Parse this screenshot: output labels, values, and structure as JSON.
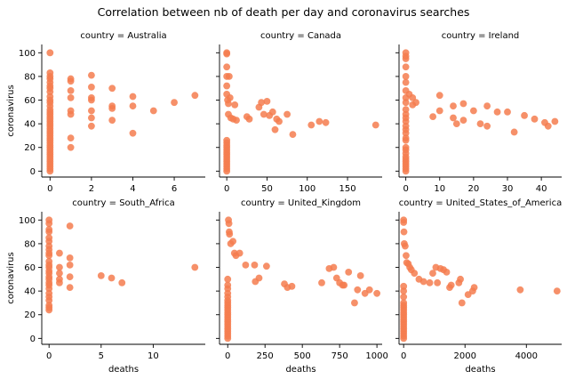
{
  "figure": {
    "title": "Correlation between nb of death per day and coronavirus searches",
    "xlabel": "deaths",
    "ylabel": "coronavirus"
  },
  "colors": {
    "point": "#f47c4f",
    "axis": "#000000"
  },
  "shared_y": {
    "ylim": [
      -5,
      107
    ],
    "yticks": [
      0,
      20,
      40,
      60,
      80,
      100
    ]
  },
  "chart_data": [
    {
      "type": "scatter",
      "title": "country = Australia",
      "xlabel": "",
      "ylabel": "coronavirus",
      "xlim": [
        -0.4,
        7.5
      ],
      "xticks": [
        0,
        2,
        4,
        6
      ],
      "points": [
        [
          0,
          0
        ],
        [
          0,
          2
        ],
        [
          0,
          4
        ],
        [
          0,
          6
        ],
        [
          0,
          8
        ],
        [
          0,
          10
        ],
        [
          0,
          12
        ],
        [
          0,
          14
        ],
        [
          0,
          16
        ],
        [
          0,
          18
        ],
        [
          0,
          20
        ],
        [
          0,
          22
        ],
        [
          0,
          24
        ],
        [
          0,
          26
        ],
        [
          0,
          28
        ],
        [
          0,
          30
        ],
        [
          0,
          32
        ],
        [
          0,
          34
        ],
        [
          0,
          36
        ],
        [
          0,
          38
        ],
        [
          0,
          40
        ],
        [
          0,
          42
        ],
        [
          0,
          44
        ],
        [
          0,
          46
        ],
        [
          0,
          48
        ],
        [
          0,
          50
        ],
        [
          0,
          52
        ],
        [
          0,
          55
        ],
        [
          0,
          58
        ],
        [
          0,
          60
        ],
        [
          0,
          63
        ],
        [
          0,
          67
        ],
        [
          0,
          70
        ],
        [
          0,
          72
        ],
        [
          0,
          75
        ],
        [
          0,
          78
        ],
        [
          0,
          80
        ],
        [
          0,
          83
        ],
        [
          0,
          100
        ],
        [
          1,
          78
        ],
        [
          1,
          76
        ],
        [
          1,
          68
        ],
        [
          1,
          62
        ],
        [
          1,
          51
        ],
        [
          1,
          48
        ],
        [
          1,
          28
        ],
        [
          1,
          20
        ],
        [
          2,
          81
        ],
        [
          2,
          71
        ],
        [
          2,
          62
        ],
        [
          2,
          60
        ],
        [
          2,
          51
        ],
        [
          2,
          45
        ],
        [
          2,
          38
        ],
        [
          3,
          70
        ],
        [
          3,
          55
        ],
        [
          3,
          53
        ],
        [
          3,
          43
        ],
        [
          4,
          63
        ],
        [
          4,
          55
        ],
        [
          4,
          32
        ],
        [
          5,
          51
        ],
        [
          6,
          58
        ],
        [
          7,
          64
        ]
      ]
    },
    {
      "type": "scatter",
      "title": "country = Canada",
      "xlabel": "",
      "ylabel": "",
      "xlim": [
        -9,
        193
      ],
      "xticks": [
        0,
        50,
        100,
        150
      ],
      "points": [
        [
          0,
          0
        ],
        [
          0,
          2
        ],
        [
          0,
          4
        ],
        [
          0,
          6
        ],
        [
          0,
          8
        ],
        [
          0,
          10
        ],
        [
          0,
          12
        ],
        [
          0,
          14
        ],
        [
          0,
          16
        ],
        [
          0,
          18
        ],
        [
          0,
          20
        ],
        [
          0,
          22
        ],
        [
          0,
          24
        ],
        [
          0,
          26
        ],
        [
          0,
          100
        ],
        [
          0,
          99
        ],
        [
          0,
          88
        ],
        [
          0,
          80
        ],
        [
          0,
          72
        ],
        [
          0,
          65
        ],
        [
          1,
          60
        ],
        [
          2,
          57
        ],
        [
          3,
          80
        ],
        [
          4,
          62
        ],
        [
          2,
          48
        ],
        [
          5,
          45
        ],
        [
          8,
          44
        ],
        [
          10,
          56
        ],
        [
          12,
          43
        ],
        [
          25,
          46
        ],
        [
          28,
          44
        ],
        [
          40,
          54
        ],
        [
          43,
          58
        ],
        [
          46,
          48
        ],
        [
          50,
          59
        ],
        [
          53,
          47
        ],
        [
          57,
          50
        ],
        [
          60,
          35
        ],
        [
          62,
          44
        ],
        [
          65,
          42
        ],
        [
          75,
          48
        ],
        [
          82,
          31
        ],
        [
          105,
          39
        ],
        [
          115,
          42
        ],
        [
          123,
          41
        ],
        [
          185,
          39
        ]
      ]
    },
    {
      "type": "scatter",
      "title": "country = Ireland",
      "xlabel": "",
      "ylabel": "",
      "xlim": [
        -2,
        46
      ],
      "xticks": [
        0,
        10,
        20,
        30,
        40
      ],
      "points": [
        [
          0,
          0
        ],
        [
          0,
          2
        ],
        [
          0,
          4
        ],
        [
          0,
          6
        ],
        [
          0,
          8
        ],
        [
          0,
          10
        ],
        [
          0,
          12
        ],
        [
          0,
          15
        ],
        [
          0,
          18
        ],
        [
          0,
          20
        ],
        [
          0,
          100
        ],
        [
          0,
          97
        ],
        [
          0,
          95
        ],
        [
          0,
          88
        ],
        [
          0,
          80
        ],
        [
          0,
          75
        ],
        [
          0,
          68
        ],
        [
          0,
          62
        ],
        [
          0,
          58
        ],
        [
          0,
          52
        ],
        [
          0,
          48
        ],
        [
          0,
          45
        ],
        [
          0,
          42
        ],
        [
          0,
          38
        ],
        [
          0,
          35
        ],
        [
          0,
          32
        ],
        [
          0,
          28
        ],
        [
          0,
          26
        ],
        [
          1,
          65
        ],
        [
          2,
          62
        ],
        [
          2,
          56
        ],
        [
          3,
          58
        ],
        [
          8,
          46
        ],
        [
          10,
          64
        ],
        [
          10,
          51
        ],
        [
          14,
          55
        ],
        [
          14,
          45
        ],
        [
          15,
          40
        ],
        [
          17,
          57
        ],
        [
          17,
          43
        ],
        [
          20,
          51
        ],
        [
          22,
          40
        ],
        [
          24,
          55
        ],
        [
          24,
          38
        ],
        [
          27,
          50
        ],
        [
          30,
          50
        ],
        [
          32,
          33
        ],
        [
          35,
          47
        ],
        [
          38,
          44
        ],
        [
          41,
          41
        ],
        [
          42,
          38
        ],
        [
          44,
          42
        ]
      ]
    },
    {
      "type": "scatter",
      "title": "country = South_Africa",
      "xlabel": "deaths",
      "ylabel": "coronavirus",
      "xlim": [
        -0.7,
        15
      ],
      "xticks": [
        0,
        5,
        10
      ],
      "points": [
        [
          0,
          100
        ],
        [
          0,
          97
        ],
        [
          0,
          92
        ],
        [
          0,
          90
        ],
        [
          0,
          85
        ],
        [
          0,
          82
        ],
        [
          0,
          78
        ],
        [
          0,
          75
        ],
        [
          0,
          72
        ],
        [
          0,
          70
        ],
        [
          0,
          65
        ],
        [
          0,
          62
        ],
        [
          0,
          60
        ],
        [
          0,
          57
        ],
        [
          0,
          55
        ],
        [
          0,
          52
        ],
        [
          0,
          50
        ],
        [
          0,
          47
        ],
        [
          0,
          45
        ],
        [
          0,
          42
        ],
        [
          0,
          38
        ],
        [
          0,
          35
        ],
        [
          0,
          32
        ],
        [
          0,
          28
        ],
        [
          0,
          26
        ],
        [
          0,
          24
        ],
        [
          1,
          72
        ],
        [
          1,
          60
        ],
        [
          1,
          55
        ],
        [
          1,
          50
        ],
        [
          1,
          47
        ],
        [
          2,
          95
        ],
        [
          2,
          68
        ],
        [
          2,
          62
        ],
        [
          2,
          52
        ],
        [
          2,
          43
        ],
        [
          5,
          53
        ],
        [
          6,
          51
        ],
        [
          7,
          47
        ],
        [
          14,
          60
        ]
      ]
    },
    {
      "type": "scatter",
      "title": "country = United_Kingdom",
      "xlabel": "deaths",
      "ylabel": "",
      "xlim": [
        -55,
        1035
      ],
      "xticks": [
        0,
        250,
        500,
        750,
        1000
      ],
      "points": [
        [
          0,
          0
        ],
        [
          0,
          2
        ],
        [
          0,
          4
        ],
        [
          0,
          6
        ],
        [
          0,
          8
        ],
        [
          0,
          10
        ],
        [
          0,
          12
        ],
        [
          0,
          14
        ],
        [
          0,
          16
        ],
        [
          0,
          18
        ],
        [
          0,
          20
        ],
        [
          0,
          22
        ],
        [
          0,
          24
        ],
        [
          0,
          26
        ],
        [
          0,
          28
        ],
        [
          0,
          30
        ],
        [
          0,
          32
        ],
        [
          0,
          35
        ],
        [
          0,
          38
        ],
        [
          0,
          42
        ],
        [
          0,
          45
        ],
        [
          0,
          50
        ],
        [
          5,
          100
        ],
        [
          8,
          97
        ],
        [
          10,
          90
        ],
        [
          12,
          88
        ],
        [
          20,
          80
        ],
        [
          35,
          82
        ],
        [
          45,
          72
        ],
        [
          55,
          70
        ],
        [
          80,
          72
        ],
        [
          120,
          62
        ],
        [
          180,
          62
        ],
        [
          185,
          48
        ],
        [
          210,
          51
        ],
        [
          260,
          61
        ],
        [
          380,
          46
        ],
        [
          400,
          43
        ],
        [
          430,
          44
        ],
        [
          630,
          47
        ],
        [
          680,
          59
        ],
        [
          710,
          60
        ],
        [
          730,
          51
        ],
        [
          750,
          47
        ],
        [
          770,
          45
        ],
        [
          780,
          45
        ],
        [
          810,
          56
        ],
        [
          850,
          30
        ],
        [
          870,
          41
        ],
        [
          890,
          53
        ],
        [
          920,
          38
        ],
        [
          950,
          41
        ],
        [
          1000,
          38
        ]
      ]
    },
    {
      "type": "scatter",
      "title": "country = United_States_of_America",
      "xlabel": "deaths",
      "ylabel": "",
      "xlim": [
        -150,
        5150
      ],
      "xticks": [
        0,
        2000,
        4000
      ],
      "points": [
        [
          0,
          0
        ],
        [
          0,
          2
        ],
        [
          0,
          4
        ],
        [
          0,
          6
        ],
        [
          0,
          8
        ],
        [
          0,
          10
        ],
        [
          0,
          12
        ],
        [
          0,
          14
        ],
        [
          0,
          16
        ],
        [
          0,
          18
        ],
        [
          0,
          20
        ],
        [
          0,
          22
        ],
        [
          0,
          24
        ],
        [
          0,
          26
        ],
        [
          0,
          28
        ],
        [
          0,
          30
        ],
        [
          0,
          35
        ],
        [
          0,
          40
        ],
        [
          0,
          44
        ],
        [
          0,
          100
        ],
        [
          0,
          98
        ],
        [
          10,
          90
        ],
        [
          20,
          80
        ],
        [
          50,
          78
        ],
        [
          80,
          70
        ],
        [
          100,
          64
        ],
        [
          150,
          63
        ],
        [
          200,
          60
        ],
        [
          250,
          58
        ],
        [
          350,
          55
        ],
        [
          500,
          50
        ],
        [
          650,
          48
        ],
        [
          850,
          47
        ],
        [
          950,
          55
        ],
        [
          1050,
          60
        ],
        [
          1100,
          47
        ],
        [
          1200,
          59
        ],
        [
          1300,
          58
        ],
        [
          1400,
          56
        ],
        [
          1500,
          43
        ],
        [
          1550,
          45
        ],
        [
          1800,
          47
        ],
        [
          1850,
          50
        ],
        [
          1900,
          30
        ],
        [
          2100,
          37
        ],
        [
          2250,
          40
        ],
        [
          2300,
          43
        ],
        [
          3800,
          41
        ],
        [
          5000,
          40
        ]
      ]
    }
  ]
}
